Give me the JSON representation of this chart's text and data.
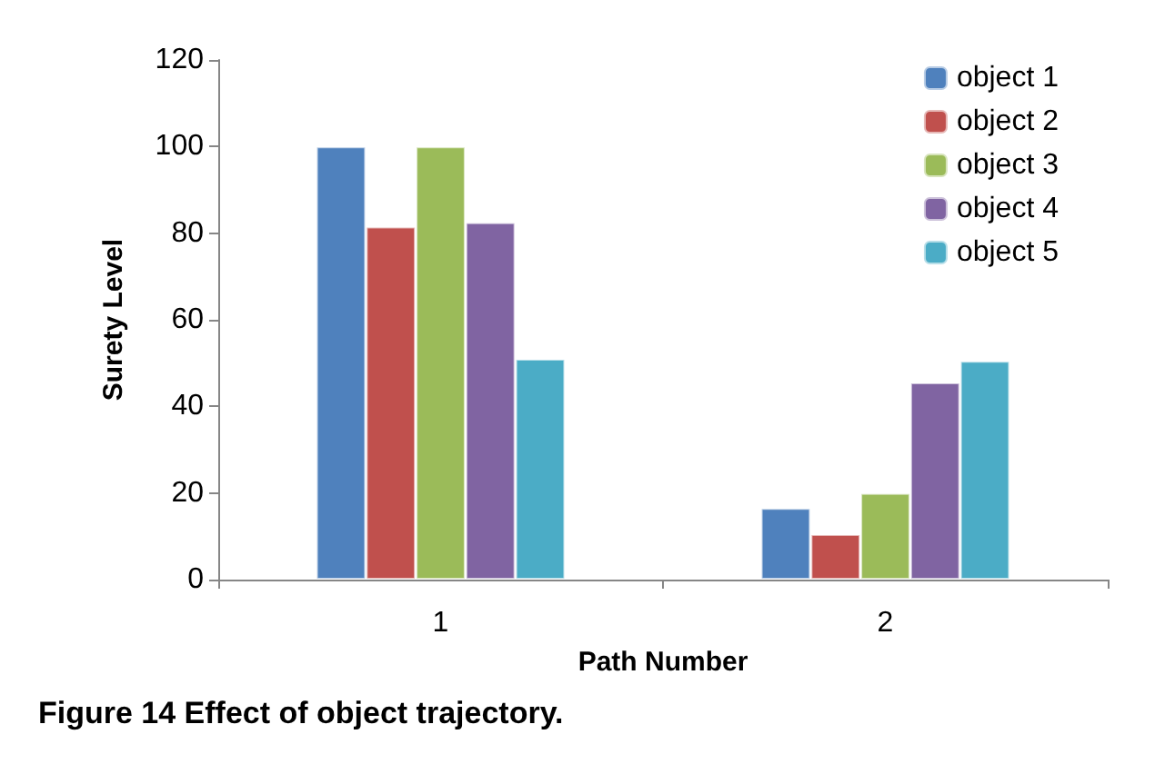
{
  "chart_data": {
    "type": "bar",
    "title": "Figure 14 Effect of object trajectory.",
    "xlabel": "Path Number",
    "ylabel": "Surety Level",
    "categories": [
      "1",
      "2"
    ],
    "series": [
      {
        "name": "object 1",
        "color": "#4f81bd",
        "values": [
          100,
          16.5
        ]
      },
      {
        "name": "object 2",
        "color": "#c0504d",
        "values": [
          81.5,
          10.5
        ]
      },
      {
        "name": "object 3",
        "color": "#9bbb59",
        "values": [
          100,
          20
        ]
      },
      {
        "name": "object 4",
        "color": "#8064a2",
        "values": [
          82.5,
          45.5
        ]
      },
      {
        "name": "object 5",
        "color": "#4bacc6",
        "values": [
          51,
          50.5
        ]
      }
    ],
    "ylim": [
      0,
      120
    ],
    "yticks": [
      0,
      20,
      40,
      60,
      80,
      100,
      120
    ],
    "grid": false,
    "legend": "top right"
  }
}
